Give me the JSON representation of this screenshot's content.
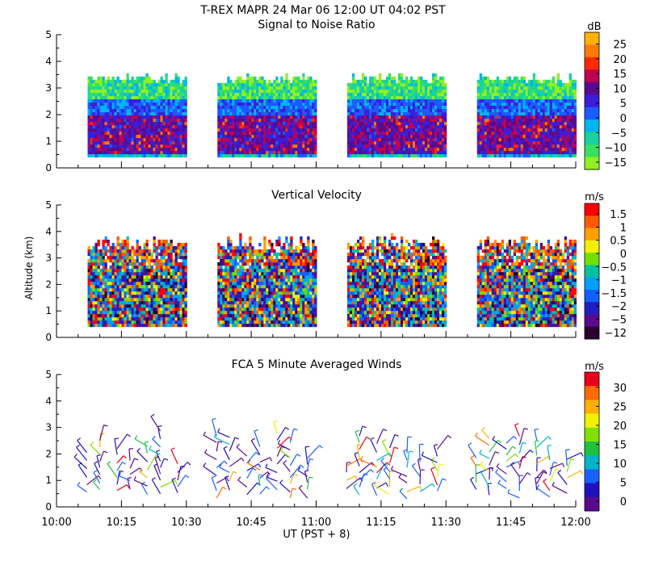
{
  "header": {
    "title": "T-REX   MAPR 24 Mar 06   12:00 UT   04:02   PST"
  },
  "chart_data": [
    {
      "type": "heatmap",
      "title": "Signal to Noise Ratio",
      "xlabel": "",
      "ylabel": "",
      "xlim": [
        "10:00",
        "12:00"
      ],
      "ylim": [
        0,
        5
      ],
      "yticks": [
        0,
        1,
        2,
        3,
        4,
        5
      ],
      "colorbar": {
        "unit": "dB",
        "ticks": [
          "25",
          "20",
          "15",
          "10",
          "5",
          "0",
          "−5",
          "−10",
          "−15"
        ],
        "colors": [
          "#ffb000",
          "#ff7a00",
          "#ff2a00",
          "#c00050",
          "#5a0a8c",
          "#3a1ed8",
          "#1a5cff",
          "#00b4f0",
          "#18d2a0",
          "#38e060",
          "#90f020"
        ]
      },
      "data_segments_utc": [
        [
          "10:07",
          "10:30"
        ],
        [
          "10:37",
          "11:00"
        ],
        [
          "11:07",
          "11:30"
        ],
        [
          "11:37",
          "12:00"
        ]
      ],
      "data_altitude_km": [
        0.4,
        3.5
      ]
    },
    {
      "type": "heatmap",
      "title": "Vertical Velocity",
      "xlabel": "",
      "ylabel": "Altitude (km)",
      "xlim": [
        "10:00",
        "12:00"
      ],
      "ylim": [
        0,
        5
      ],
      "yticks": [
        0,
        1,
        2,
        3,
        4,
        5
      ],
      "colorbar": {
        "unit": "m/s",
        "ticks": [
          "1.5",
          "1",
          "0.5",
          "0",
          "−0.5",
          "−1",
          "−1.5",
          "−2",
          "−5",
          "−12"
        ],
        "colors": [
          "#ff0000",
          "#ff5a00",
          "#ffa000",
          "#f0f000",
          "#70e000",
          "#00c0a0",
          "#00a0ff",
          "#1060ff",
          "#2020c0",
          "#5a0a8c",
          "#2a0030"
        ]
      },
      "data_segments_utc": [
        [
          "10:07",
          "10:30"
        ],
        [
          "10:37",
          "11:00"
        ],
        [
          "11:07",
          "11:30"
        ],
        [
          "11:37",
          "12:00"
        ]
      ],
      "data_altitude_km": [
        0.4,
        3.6
      ]
    },
    {
      "type": "scatter",
      "title": "FCA 5 Minute Averaged Winds",
      "xlabel": "UT  (PST + 8)",
      "ylabel": "",
      "xlim": [
        "10:00",
        "12:00"
      ],
      "ylim": [
        0,
        5
      ],
      "yticks": [
        0,
        1,
        2,
        3,
        4,
        5
      ],
      "xticks": [
        "10:00",
        "10:15",
        "10:30",
        "10:45",
        "11:00",
        "11:15",
        "11:30",
        "11:45",
        "12:00"
      ],
      "colorbar": {
        "unit": "m/s",
        "ticks": [
          "30",
          "25",
          "20",
          "15",
          "10",
          "5",
          "0"
        ],
        "colors": [
          "#e8001a",
          "#ff6a00",
          "#ffb000",
          "#f0f000",
          "#80e000",
          "#20c040",
          "#00b4c8",
          "#1a60ff",
          "#2010c0",
          "#5a0a8c"
        ]
      },
      "wind_columns_utc": [
        "10:07",
        "10:10",
        "10:14",
        "10:17",
        "10:21",
        "10:24",
        "10:28",
        "10:37",
        "10:40",
        "10:44",
        "10:47",
        "10:51",
        "10:54",
        "10:58",
        "11:07",
        "11:10",
        "11:14",
        "11:17",
        "11:21",
        "11:24",
        "11:28",
        "11:37",
        "11:40",
        "11:44",
        "11:47",
        "11:51",
        "11:54",
        "11:58"
      ],
      "wind_altitude_range_km": [
        0.3,
        2.9
      ]
    }
  ]
}
